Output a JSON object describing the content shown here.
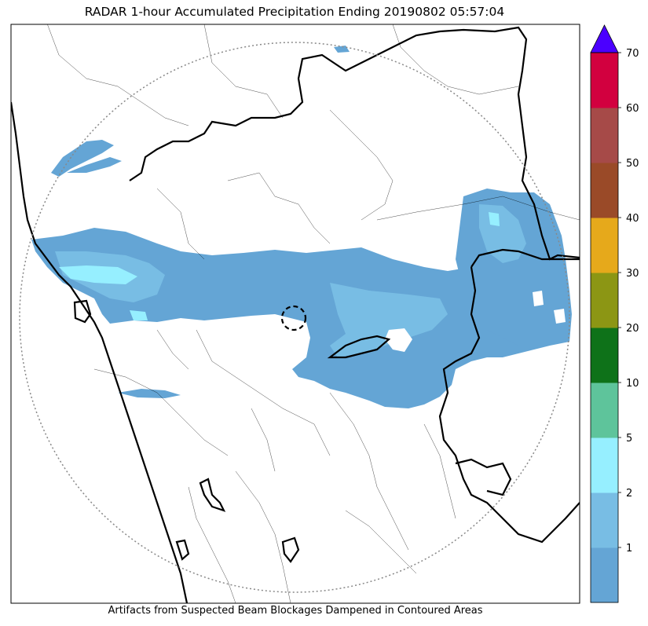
{
  "title": "RADAR 1-hour Accumulated Precipitation Ending 20190802 05:57:04",
  "caption": "Artifacts from Suspected Beam Blockages Dampened in Contoured Areas",
  "colorbar": {
    "levels": [
      {
        "label": "",
        "color": "#64a5d5"
      },
      {
        "label": "1",
        "color": "#78bde4"
      },
      {
        "label": "2",
        "color": "#96efff"
      },
      {
        "label": "5",
        "color": "#5ec49b"
      },
      {
        "label": "10",
        "color": "#0e7219"
      },
      {
        "label": "20",
        "color": "#8c9614"
      },
      {
        "label": "30",
        "color": "#e6a91b"
      },
      {
        "label": "40",
        "color": "#9a4a28"
      },
      {
        "label": "50",
        "color": "#a64a48"
      },
      {
        "label": "60",
        "color": "#d2003f"
      }
    ],
    "top_label": "70",
    "extend_color": "#4b00ff"
  },
  "colors": {
    "precip_light": "#64a5d5",
    "precip_medium": "#78bde4",
    "precip_heavy": "#96efff",
    "range_ring": "#888888",
    "borders": "#000000"
  }
}
